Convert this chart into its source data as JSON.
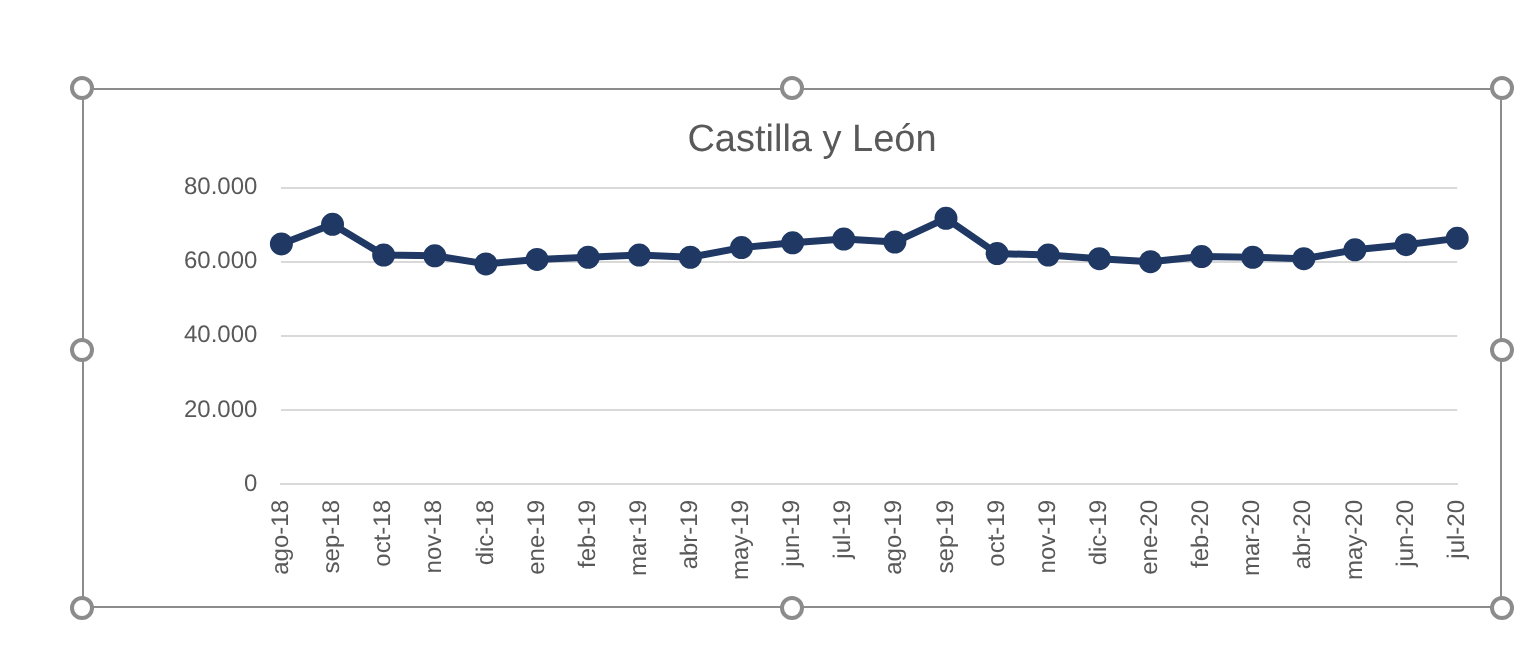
{
  "chart_data": {
    "type": "line",
    "title": "Castilla y León",
    "categories": [
      "ago-18",
      "sep-18",
      "oct-18",
      "nov-18",
      "dic-18",
      "ene-19",
      "feb-19",
      "mar-19",
      "abr-19",
      "may-19",
      "jun-19",
      "jul-19",
      "ago-19",
      "sep-19",
      "oct-19",
      "nov-19",
      "dic-19",
      "ene-20",
      "feb-20",
      "mar-20",
      "abr-20",
      "may-20",
      "jun-20",
      "jul-20"
    ],
    "series": [
      {
        "color": "#203864",
        "values": [
          64800,
          70100,
          61800,
          61600,
          59400,
          60600,
          61200,
          61800,
          61200,
          63800,
          65100,
          66100,
          65300,
          71700,
          62200,
          61800,
          60800,
          60000,
          61400,
          61200,
          60800,
          63200,
          64600,
          66300
        ]
      }
    ],
    "ylim": [
      0,
      80000
    ],
    "yticks": [
      {
        "value": 0,
        "label": "0"
      },
      {
        "value": 20000,
        "label": "20.000"
      },
      {
        "value": 40000,
        "label": "40.000"
      },
      {
        "value": 60000,
        "label": "60.000"
      },
      {
        "value": 80000,
        "label": "80.000"
      }
    ],
    "grid": "y",
    "legend": false,
    "marker": "circle",
    "line_style": "solid"
  }
}
